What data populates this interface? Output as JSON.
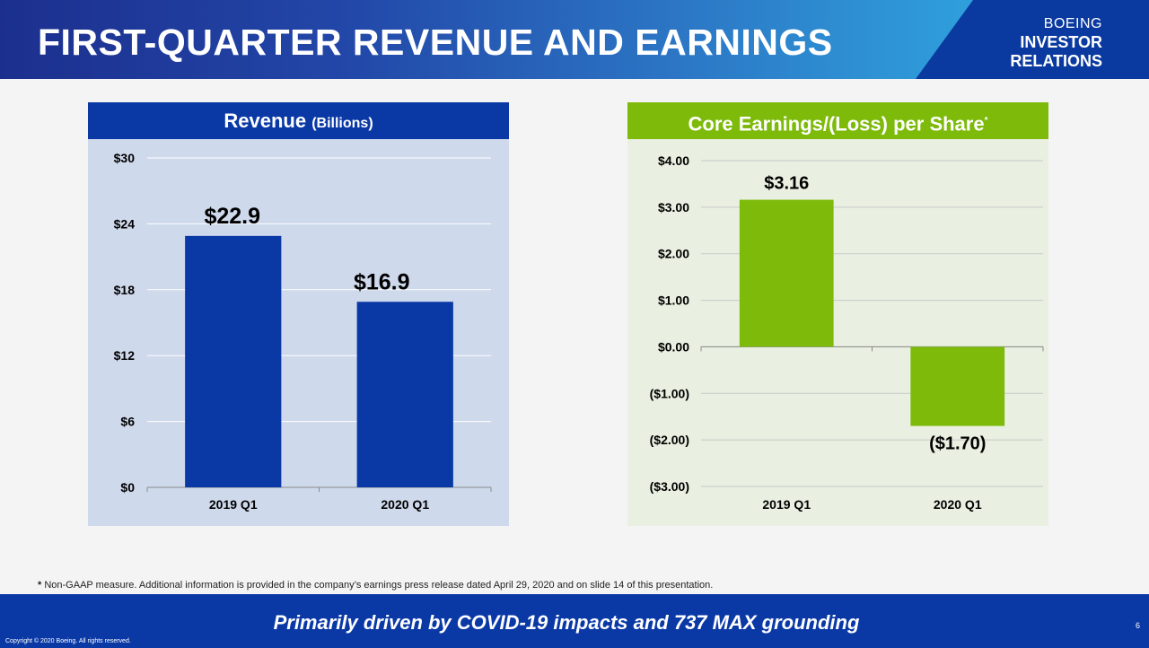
{
  "header": {
    "title": "FIRST-QUARTER REVENUE AND EARNINGS",
    "brand_line1": "BOEING",
    "brand_line2": "INVESTOR",
    "brand_line3": "RELATIONS"
  },
  "revenue_panel": {
    "title": "Revenue",
    "subtitle": "(Billions)"
  },
  "eps_panel": {
    "title": "Core Earnings/(Loss) per Share",
    "marker": "*"
  },
  "chart_data": [
    {
      "type": "bar",
      "title": "Revenue (Billions)",
      "categories": [
        "2019 Q1",
        "2020 Q1"
      ],
      "values": [
        22.9,
        16.9
      ],
      "data_labels": [
        "$22.9",
        "$16.9"
      ],
      "ylim": [
        0,
        30
      ],
      "yticks": [
        0,
        6,
        12,
        18,
        24,
        30
      ],
      "ytick_labels": [
        "$0",
        "$6",
        "$12",
        "$18",
        "$24",
        "$30"
      ],
      "grid": true,
      "bar_color": "#0a39a6"
    },
    {
      "type": "bar",
      "title": "Core Earnings/(Loss) per Share*",
      "categories": [
        "2019 Q1",
        "2020 Q1"
      ],
      "values": [
        3.16,
        -1.7
      ],
      "data_labels": [
        "$3.16",
        "($1.70)"
      ],
      "ylim": [
        -3,
        4
      ],
      "yticks": [
        4,
        3,
        2,
        1,
        0,
        -1,
        -2,
        -3
      ],
      "ytick_labels": [
        "$4.00",
        "$3.00",
        "$2.00",
        "$1.00",
        "$0.00",
        "($1.00)",
        "($2.00)",
        "($3.00)"
      ],
      "grid": true,
      "bar_color": "#7dba0a"
    }
  ],
  "footnote": {
    "marker": "*",
    "text": " Non-GAAP measure. Additional information is provided in the company’s earnings press release dated April 29, 2020 and on slide 14 of this presentation."
  },
  "footer": {
    "tagline": "Primarily driven by COVID-19 impacts and 737 MAX grounding",
    "copyright": "Copyright © 2020 Boeing. All rights reserved.",
    "page_number": "6"
  }
}
